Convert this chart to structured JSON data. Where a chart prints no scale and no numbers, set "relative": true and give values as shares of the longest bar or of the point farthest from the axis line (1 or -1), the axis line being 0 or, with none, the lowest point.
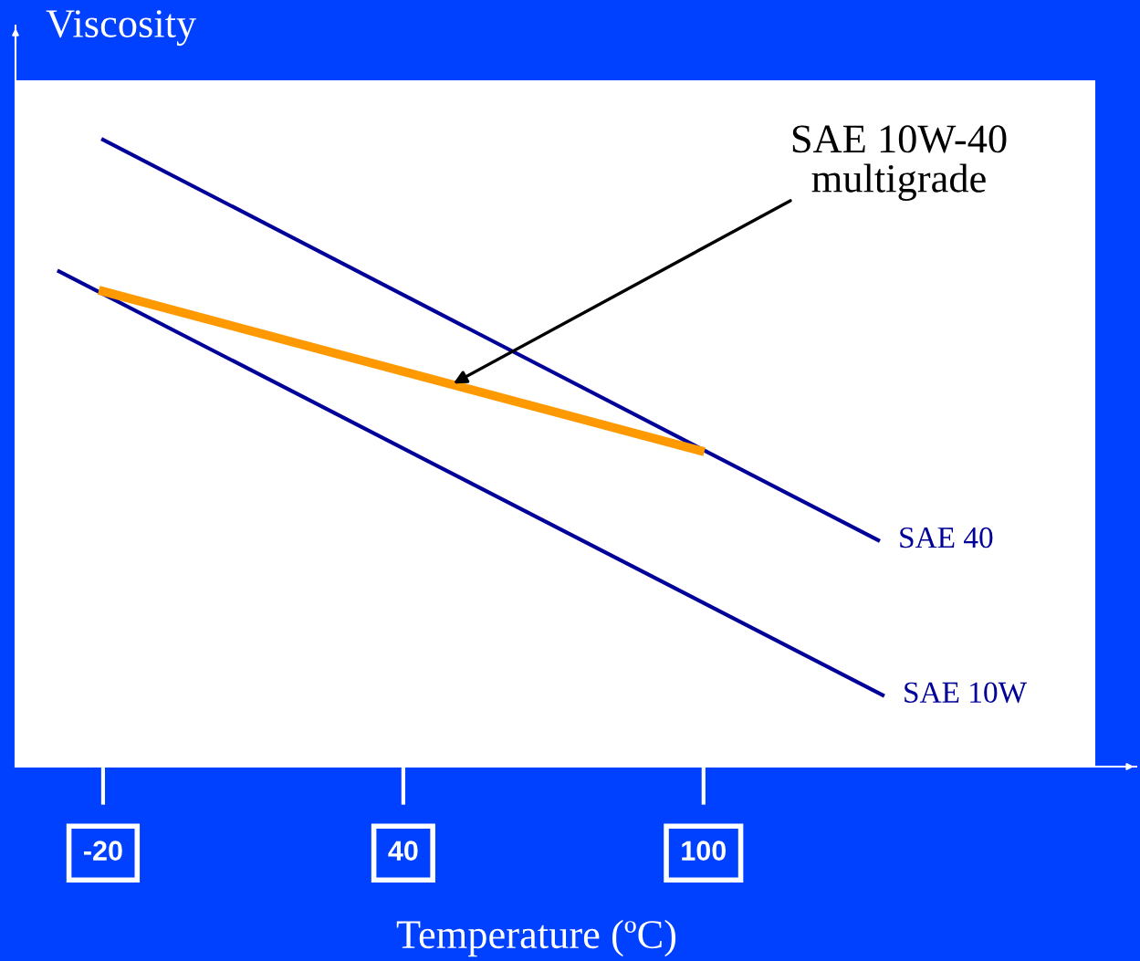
{
  "chart_data": {
    "type": "line",
    "relative": true,
    "xlabel": "Temperature (ºC)",
    "ylabel": "Viscosity",
    "xlim": [
      -37.5,
      186.5
    ],
    "xticks": [
      -20,
      40,
      100
    ],
    "tick_labels": "x",
    "grid": false,
    "legend": false,
    "series": [
      {
        "name": "SAE 40",
        "color": "#000099",
        "x": [
          -20,
          134.9
        ],
        "values": [
          1,
          0.361
        ]
      },
      {
        "name": "SAE 10W",
        "color": "#000099",
        "x": [
          -28.8,
          135.8
        ],
        "values": [
          0.79,
          0.114
        ]
      },
      {
        "color": "#ff9900",
        "x": [
          -20,
          99.3
        ],
        "values": [
          0.758,
          0.504
        ]
      }
    ],
    "annotations": [
      {
        "text": "SAE 10W-40\nmultigrade",
        "x": 50,
        "y": 0.611
      }
    ]
  }
}
